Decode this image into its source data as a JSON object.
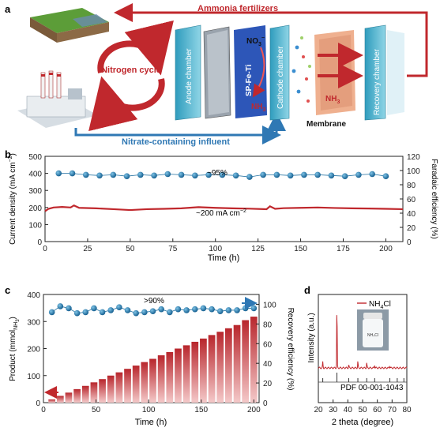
{
  "panel_a": {
    "letter": "a",
    "top_arrow_label": "Ammonia fertilizers",
    "bottom_arrow_label": "Nitrate-containing influent",
    "cycle_label": "Nitrogen cycle",
    "anode_label": "Anode chamber",
    "catalyst_label": "SP-Fe-Ti",
    "cathode_label": "Cathode chamber",
    "recovery_label": "Recovery chamber",
    "membrane_label": "Membrane",
    "nitrate_formula": "NO",
    "nitrate_sub": "3",
    "nitrate_sup": "−",
    "ammonia_formula": "NH",
    "ammonia_sub": "3",
    "colors": {
      "red_arrow": "#c0282d",
      "blue_arrow": "#2f78b4",
      "chamber": "#5fb9d1"
    }
  },
  "chart_data": [
    {
      "panel": "b",
      "type": "line",
      "xlabel": "Time (h)",
      "ylabel": "Current density (mA cm",
      "ylabel_sup": "−2",
      "ylabel_end": ")",
      "y2label": "Faradaic efficiency (%)",
      "xlim": [
        0,
        210
      ],
      "ylim": [
        0,
        500
      ],
      "y2lim": [
        0,
        120
      ],
      "xticks": [
        0,
        25,
        50,
        75,
        100,
        125,
        150,
        175,
        200
      ],
      "yticks": [
        0,
        100,
        200,
        300,
        400,
        500
      ],
      "y2ticks": [
        0,
        20,
        40,
        60,
        80,
        100,
        120
      ],
      "annotation_fe": "~95%",
      "annotation_cd": "~200 mA cm",
      "annotation_cd_sup": "−2",
      "series": [
        {
          "axis": "y",
          "color": "#c0282d",
          "x": [
            0,
            2,
            5,
            10,
            15,
            17,
            20,
            30,
            40,
            50,
            60,
            70,
            80,
            90,
            100,
            110,
            120,
            130,
            132,
            135,
            140,
            150,
            160,
            170,
            180,
            190,
            200,
            210
          ],
          "values": [
            178,
            192,
            200,
            203,
            200,
            212,
            198,
            195,
            190,
            185,
            190,
            192,
            195,
            202,
            198,
            195,
            193,
            190,
            207,
            192,
            196,
            198,
            200,
            197,
            195,
            194,
            192,
            190
          ]
        },
        {
          "axis": "y2",
          "color": "#1f6fa0",
          "x": [
            8,
            16,
            24,
            32,
            40,
            48,
            56,
            64,
            72,
            80,
            88,
            96,
            104,
            112,
            120,
            128,
            136,
            144,
            152,
            160,
            168,
            176,
            184,
            192,
            200
          ],
          "values": [
            96,
            96,
            94,
            93,
            94,
            92,
            94,
            93,
            95,
            94,
            93,
            94,
            94,
            93,
            91,
            94,
            94,
            93,
            94,
            94,
            93,
            92,
            94,
            95,
            92
          ]
        }
      ]
    },
    {
      "panel": "c",
      "type": "bar",
      "xlabel": "Time (h)",
      "ylabel": "Product (mmol",
      "ylabel_sub": "NH",
      "ylabel_subsub": "3",
      "ylabel_end": ")",
      "y2label": "Recovery efficiency (%)",
      "xlim": [
        0,
        205
      ],
      "ylim": [
        0,
        400
      ],
      "y2lim": [
        0,
        110
      ],
      "xticks": [
        0,
        50,
        100,
        150,
        200
      ],
      "yticks": [
        0,
        100,
        200,
        300,
        400
      ],
      "y2ticks": [
        0,
        20,
        40,
        60,
        80,
        100
      ],
      "annotation": ">90%",
      "bars": {
        "color": "#c9353b",
        "x": [
          8,
          16,
          24,
          32,
          40,
          48,
          56,
          64,
          72,
          80,
          88,
          96,
          104,
          112,
          120,
          128,
          136,
          144,
          152,
          160,
          168,
          176,
          184,
          192,
          200
        ],
        "values": [
          12,
          25,
          37,
          50,
          62,
          75,
          87,
          100,
          112,
          125,
          137,
          150,
          162,
          175,
          187,
          200,
          212,
          225,
          237,
          250,
          262,
          275,
          287,
          305,
          318
        ]
      },
      "series": [
        {
          "axis": "y2",
          "color": "#1f6fa0",
          "x": [
            8,
            16,
            24,
            32,
            40,
            48,
            56,
            64,
            72,
            80,
            88,
            96,
            104,
            112,
            120,
            128,
            136,
            144,
            152,
            160,
            168,
            176,
            184,
            192,
            200
          ],
          "values": [
            92,
            98,
            96,
            91,
            92,
            96,
            92,
            94,
            97,
            94,
            91,
            92,
            93,
            95,
            92,
            95,
            94,
            95,
            96,
            95,
            93,
            94,
            94,
            96,
            96
          ]
        }
      ]
    },
    {
      "panel": "d",
      "type": "line",
      "xlabel": "2 theta (degree)",
      "ylabel": "Intensity (a.u.)",
      "legend": "NH",
      "legend_sub": "4",
      "legend_end": "Cl",
      "reference_label": "PDF 00-001-1043",
      "vial_label": "NH₄Cl",
      "xlim": [
        20,
        80
      ],
      "xticks": [
        20,
        30,
        40,
        50,
        60,
        70,
        80
      ],
      "peaks": [
        {
          "x": 23.0,
          "h": 0.09
        },
        {
          "x": 32.6,
          "h": 1.0
        },
        {
          "x": 40.6,
          "h": 0.05
        },
        {
          "x": 46.8,
          "h": 0.1
        },
        {
          "x": 52.8,
          "h": 0.08
        },
        {
          "x": 58.2,
          "h": 0.05
        },
        {
          "x": 68.5,
          "h": 0.04
        }
      ],
      "reference": [
        23.0,
        32.6,
        40.6,
        46.8,
        52.8,
        58.2,
        68.5,
        73.5,
        78.0
      ]
    }
  ]
}
